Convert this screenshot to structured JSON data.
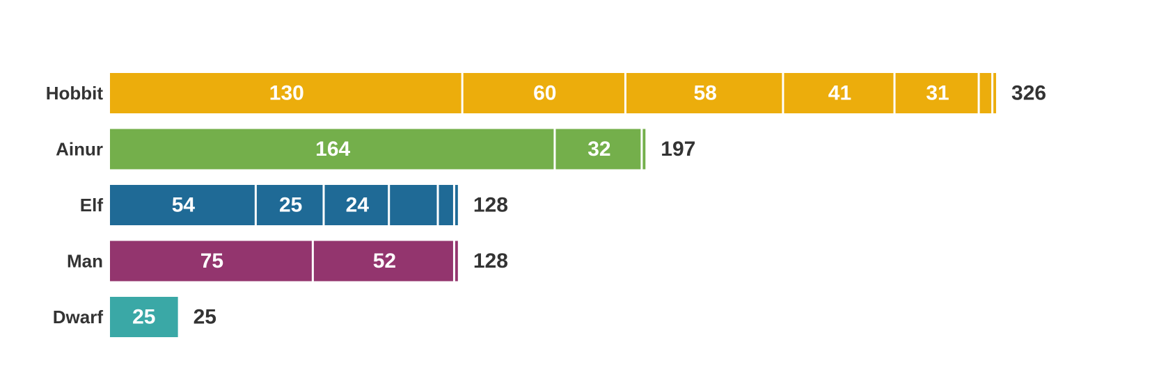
{
  "chart_data": {
    "type": "bar",
    "orientation": "horizontal",
    "stacked": true,
    "grid": false,
    "legend": "none",
    "xlim": [
      0,
      348
    ],
    "categories": [
      "Hobbit",
      "Ainur",
      "Elf",
      "Man",
      "Dwarf"
    ],
    "rows": [
      {
        "category": "Hobbit",
        "color": "#ECAD0C",
        "segments": [
          130,
          60,
          58,
          41,
          31,
          5,
          1
        ],
        "labels": [
          "130",
          "60",
          "58",
          "41",
          "31",
          "",
          ""
        ],
        "total": "326"
      },
      {
        "category": "Ainur",
        "color": "#74AF4B",
        "segments": [
          164,
          32,
          1
        ],
        "labels": [
          "164",
          "32",
          ""
        ],
        "total": "197"
      },
      {
        "category": "Elf",
        "color": "#1F6A96",
        "segments": [
          54,
          25,
          24,
          18,
          6,
          1
        ],
        "labels": [
          "54",
          "25",
          "24",
          "",
          "",
          ""
        ],
        "total": "128"
      },
      {
        "category": "Man",
        "color": "#93356E",
        "segments": [
          75,
          52,
          1
        ],
        "labels": [
          "75",
          "52",
          ""
        ],
        "total": "128"
      },
      {
        "category": "Dwarf",
        "color": "#3AA8A6",
        "segments": [
          25
        ],
        "labels": [
          "25"
        ],
        "total": "25"
      }
    ]
  }
}
